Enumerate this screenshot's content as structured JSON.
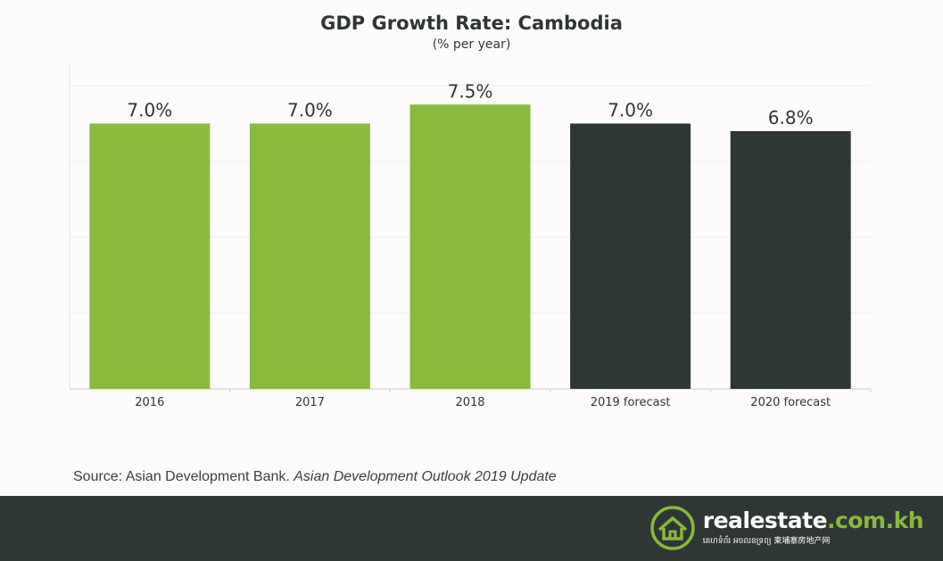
{
  "chart_data": {
    "type": "bar",
    "title": "GDP Growth Rate: Cambodia",
    "subtitle": "(% per year)",
    "categories": [
      "2016",
      "2017",
      "2018",
      "2019 forecast",
      "2020 forecast"
    ],
    "values": [
      7.0,
      7.0,
      7.5,
      7.0,
      6.8
    ],
    "value_labels": [
      "7.0%",
      "7.0%",
      "7.5%",
      "7.0%",
      "6.8%"
    ],
    "bar_colors": [
      "#8aba3e",
      "#8aba3e",
      "#8aba3e",
      "#2f3735",
      "#2f3735"
    ],
    "xlabel": "",
    "ylabel": "",
    "ylim": [
      0,
      8
    ],
    "grid": true,
    "legend": "none"
  },
  "source": {
    "prefix": "Source: Asian Development Bank. ",
    "publication": "Asian Development Outlook 2019 Update"
  },
  "footer": {
    "brand_main": "realestate",
    "brand_tld": ".com.kh",
    "tagline": "គេហទំព័រ អចលនទ្រព្យ  柬埔寨房地产网",
    "logo_icon": "house-logo-icon"
  },
  "colors": {
    "accent": "#8aba3e",
    "dark": "#2f3735"
  }
}
